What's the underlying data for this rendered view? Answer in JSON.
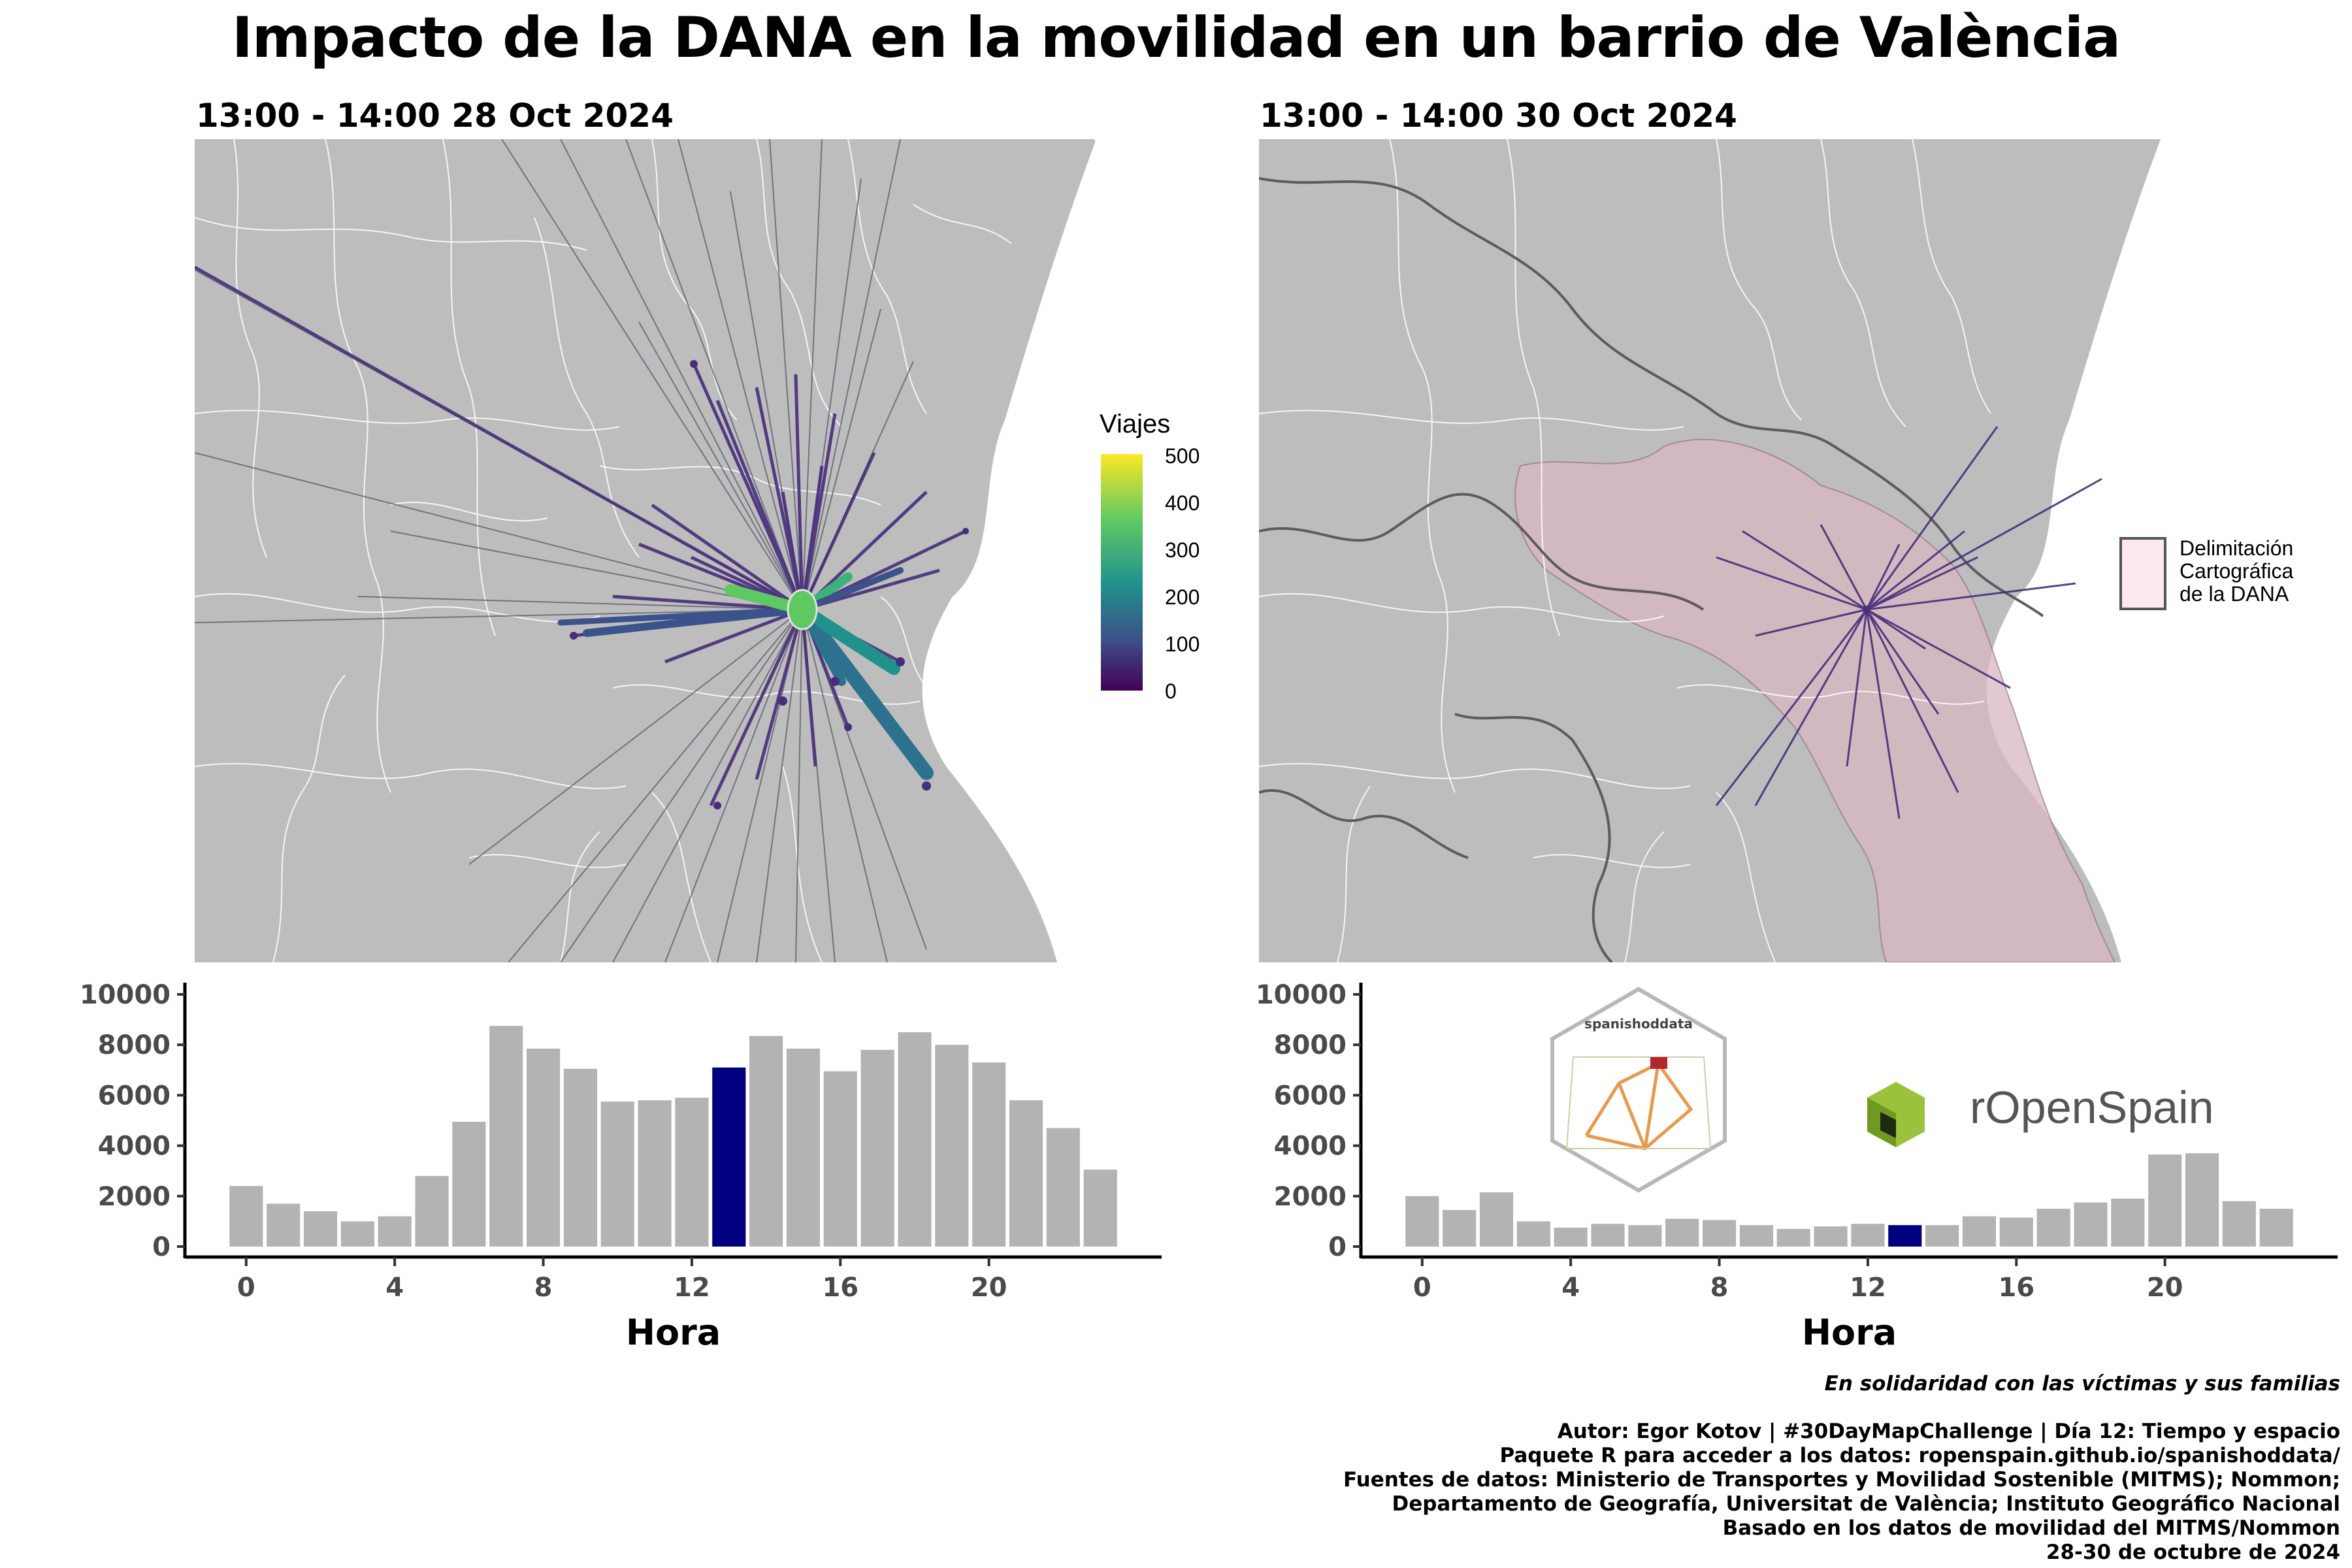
{
  "title": "Impacto de la DANA en la movilidad en un barrio de València",
  "left": {
    "subtitle": "13:00 - 14:00 28 Oct 2024",
    "legend": {
      "title": "Viajes",
      "ticks": [
        "500",
        "400",
        "300",
        "200",
        "100",
        "0"
      ]
    }
  },
  "right": {
    "subtitle": "13:00 - 14:00 30 Oct 2024",
    "legend": {
      "label": [
        "Delimitación",
        "Cartográfica",
        "de la DANA"
      ]
    },
    "logos": {
      "hex_text": "spanishoddata",
      "brand": "rOpenSpain"
    }
  },
  "chart_data": [
    {
      "type": "bar",
      "title": "",
      "xlabel": "Hora",
      "ylabel": "",
      "x": [
        0,
        1,
        2,
        3,
        4,
        5,
        6,
        7,
        8,
        9,
        10,
        11,
        12,
        13,
        14,
        15,
        16,
        17,
        18,
        19,
        20,
        21,
        22,
        23
      ],
      "values": [
        2400,
        1700,
        1400,
        1000,
        1200,
        2800,
        4950,
        8750,
        7850,
        7050,
        5750,
        5800,
        5900,
        7100,
        8350,
        7850,
        6950,
        7800,
        8500,
        8000,
        7300,
        5800,
        4700,
        3050
      ],
      "highlight_index": 13,
      "xticks": [
        "0",
        "4",
        "8",
        "12",
        "16",
        "20"
      ],
      "yticks": [
        "0",
        "2000",
        "4000",
        "6000",
        "8000",
        "10000"
      ],
      "ylim": [
        0,
        10000
      ],
      "colors": {
        "bar": "#b3b3b3",
        "highlight": "#000080"
      }
    },
    {
      "type": "bar",
      "title": "",
      "xlabel": "Hora",
      "ylabel": "",
      "x": [
        0,
        1,
        2,
        3,
        4,
        5,
        6,
        7,
        8,
        9,
        10,
        11,
        12,
        13,
        14,
        15,
        16,
        17,
        18,
        19,
        20,
        21,
        22,
        23
      ],
      "values": [
        2000,
        1450,
        2150,
        1000,
        750,
        900,
        850,
        1100,
        1050,
        850,
        700,
        800,
        900,
        850,
        850,
        1200,
        1150,
        1500,
        1750,
        1900,
        3650,
        3700,
        1800,
        1500
      ],
      "highlight_index": 13,
      "xticks": [
        "0",
        "4",
        "8",
        "12",
        "16",
        "20"
      ],
      "yticks": [
        "0",
        "2000",
        "4000",
        "6000",
        "8000",
        "10000"
      ],
      "ylim": [
        0,
        10000
      ],
      "colors": {
        "bar": "#b3b3b3",
        "highlight": "#000080"
      }
    }
  ],
  "credits": [
    "En solidaridad con las víctimas y sus familias",
    "Autor: Egor Kotov | #30DayMapChallenge | Día 12: Tiempo y espacio",
    "Paquete R para acceder a los datos: ropenspain.github.io/spanishoddata/",
    "Fuentes de datos: Ministerio de Transportes y Movilidad Sostenible (MITMS); Nommon;",
    "Departamento de Geografía, Universitat de València; Instituto Geográfico Nacional",
    "Basado en los datos de movilidad del MITMS/Nommon",
    "28-30 de octubre de 2024"
  ]
}
